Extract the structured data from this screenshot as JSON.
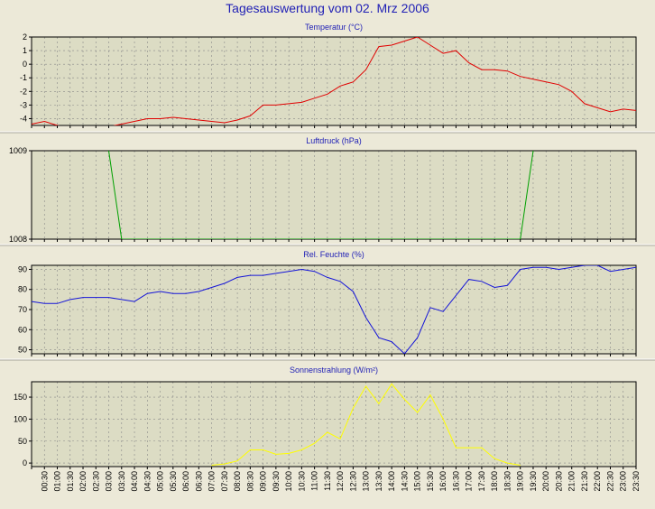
{
  "title": "Tagesauswertung vom 02. Mrz 2006",
  "colors": {
    "background": "#ece9d8",
    "plot": "#dcdcc4",
    "title": "#1f1fb5",
    "grid": "#888888"
  },
  "x_labels": [
    "00:30",
    "01:00",
    "01:30",
    "02:00",
    "02:30",
    "03:00",
    "03:30",
    "04:00",
    "04:30",
    "05:00",
    "05:30",
    "06:00",
    "06:30",
    "07:00",
    "07:30",
    "08:00",
    "08:30",
    "09:00",
    "09:30",
    "10:00",
    "10:30",
    "11:00",
    "11:30",
    "12:00",
    "12:30",
    "13:00",
    "13:30",
    "14:00",
    "14:30",
    "15:00",
    "15:30",
    "16:00",
    "16:30",
    "17:00",
    "17:30",
    "18:00",
    "18:30",
    "19:00",
    "19:30",
    "20:00",
    "20:30",
    "21:00",
    "21:30",
    "22:00",
    "22:30",
    "23:00",
    "23:30"
  ],
  "chart_data": [
    {
      "type": "line",
      "title": "Temperatur (°C)",
      "color": "#e00000",
      "ylim": [
        -4.5,
        2
      ],
      "yticks": [
        2,
        1,
        0,
        -1,
        -2,
        -3,
        -4
      ],
      "x": [
        0,
        0.5,
        1,
        1.5,
        2,
        2.5,
        3,
        3.5,
        4,
        4.5,
        5,
        5.5,
        6,
        6.5,
        7,
        7.5,
        8,
        8.5,
        9,
        9.5,
        10,
        10.5,
        11,
        11.5,
        12,
        12.5,
        13,
        13.5,
        14,
        14.5,
        15,
        15.5,
        16,
        16.5,
        17,
        17.5,
        18,
        18.5,
        19,
        19.5,
        20,
        20.5,
        21,
        21.5,
        22,
        22.5,
        23,
        23.5
      ],
      "y": [
        -4.4,
        -4.2,
        -4.5,
        -4.7,
        -4.6,
        -4.7,
        -4.6,
        -4.4,
        -4.2,
        -4.0,
        -4.0,
        -3.9,
        -4.0,
        -4.1,
        -4.2,
        -4.3,
        -4.1,
        -3.8,
        -3.0,
        -3.0,
        -2.9,
        -2.8,
        -2.5,
        -2.2,
        -1.6,
        -1.3,
        -0.4,
        1.3,
        1.4,
        1.7,
        2.0,
        1.4,
        0.8,
        1.0,
        0.1,
        -0.4,
        -0.4,
        -0.5,
        -0.9,
        -1.1,
        -1.3,
        -1.5,
        -2.0,
        -2.9,
        -3.2,
        -3.5,
        -3.3,
        -3.4
      ]
    },
    {
      "type": "line",
      "title": "Luftdruck (hPa)",
      "color": "#00a000",
      "ylim": [
        1008,
        1009
      ],
      "yticks": [
        1009,
        1008
      ],
      "x": [
        3,
        3.5,
        19,
        19.5
      ],
      "y": [
        1009,
        1008,
        1008,
        1009
      ]
    },
    {
      "type": "line",
      "title": "Rel. Feuchte (%)",
      "color": "#1414d8",
      "ylim": [
        48,
        92
      ],
      "yticks": [
        90,
        80,
        70,
        60,
        50
      ],
      "x": [
        0,
        0.5,
        1,
        1.5,
        2,
        2.5,
        3,
        3.5,
        4,
        4.5,
        5,
        5.5,
        6,
        6.5,
        7,
        7.5,
        8,
        8.5,
        9,
        9.5,
        10,
        10.5,
        11,
        11.5,
        12,
        12.5,
        13,
        13.5,
        14,
        14.5,
        15,
        15.5,
        16,
        16.5,
        17,
        17.5,
        18,
        18.5,
        19,
        19.5,
        20,
        20.5,
        21,
        21.5,
        22,
        22.5,
        23,
        23.5
      ],
      "y": [
        74,
        73,
        73,
        75,
        76,
        76,
        76,
        75,
        74,
        78,
        79,
        78,
        78,
        79,
        81,
        83,
        86,
        87,
        87,
        88,
        89,
        90,
        89,
        86,
        84,
        79,
        66,
        56,
        54,
        48,
        56,
        71,
        69,
        77,
        85,
        84,
        81,
        82,
        90,
        91,
        91,
        90,
        91,
        92,
        92,
        89,
        90,
        91
      ]
    },
    {
      "type": "line",
      "title": "Sonnenstrahlung (W/m²)",
      "color": "#ffff00",
      "ylim": [
        -8,
        185
      ],
      "yticks": [
        150,
        100,
        50,
        0
      ],
      "x": [
        7,
        7.5,
        8,
        8.5,
        9,
        9.5,
        10,
        10.5,
        11,
        11.5,
        12,
        12.5,
        13,
        13.5,
        14,
        14.5,
        15,
        15.5,
        16,
        16.5,
        17,
        17.5,
        18,
        18.5,
        19
      ],
      "y": [
        -5,
        -2,
        5,
        30,
        30,
        20,
        22,
        30,
        45,
        70,
        55,
        125,
        175,
        135,
        180,
        145,
        115,
        155,
        100,
        35,
        35,
        35,
        10,
        0,
        -5
      ]
    }
  ]
}
